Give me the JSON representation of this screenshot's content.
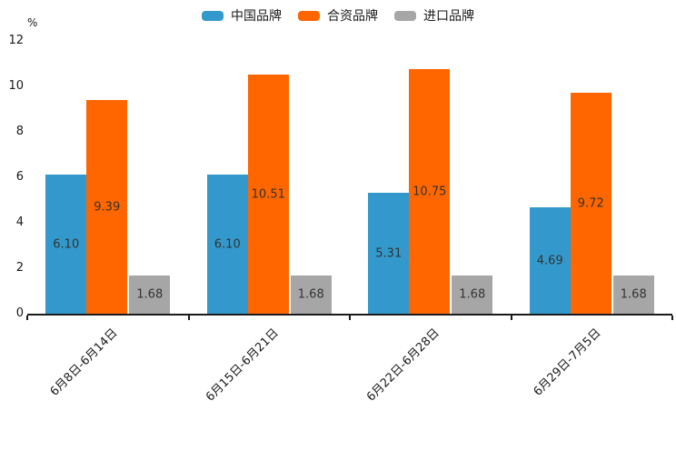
{
  "chart_data": {
    "type": "bar",
    "title": "",
    "xlabel": "",
    "ylabel": "%",
    "categories": [
      "6月8日-6月14日",
      "6月15日-6月21日",
      "6月22日-6月28日",
      "6月29日-7月5日"
    ],
    "series": [
      {
        "name": "中国品牌",
        "color": "#3399CC",
        "values": [
          6.1,
          6.1,
          5.31,
          4.69
        ]
      },
      {
        "name": "合资品牌",
        "color": "#FF6600",
        "values": [
          9.39,
          10.51,
          10.75,
          9.72
        ]
      },
      {
        "name": "进口品牌",
        "color": "#A6A6A6",
        "values": [
          1.68,
          1.68,
          1.68,
          1.68
        ]
      }
    ],
    "y_ticks": [
      0,
      2,
      4,
      6,
      8,
      10,
      12
    ],
    "ylim": [
      0,
      12
    ],
    "grid": false,
    "legend_position": "top",
    "value_label_color": "#333333",
    "axis_color": "#1a1a1a"
  }
}
